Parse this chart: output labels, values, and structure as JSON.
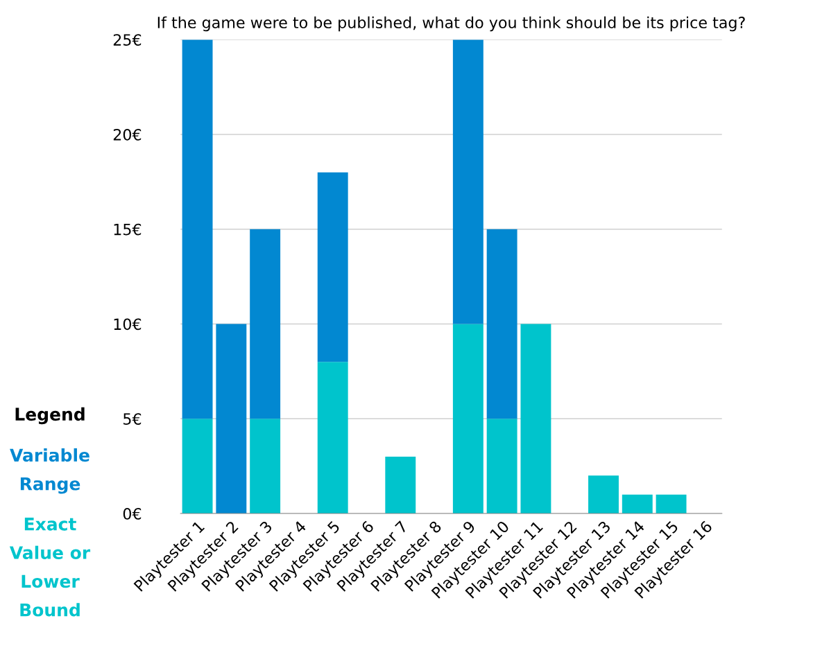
{
  "chart_data": {
    "type": "bar",
    "title": "If the game were to be published, what do you think should be its price tag?",
    "categories": [
      "Playtester 1",
      "Playtester 2",
      "Playtester 3",
      "Playtester 4",
      "Playtester 5",
      "Playtester 6",
      "Playtester 7",
      "Playtester 8",
      "Playtester 9",
      "Playtester 10",
      "Playtester 11",
      "Playtester 12",
      "Playtester 13",
      "Playtester 14",
      "Playtester 15",
      "Playtester 16"
    ],
    "stacked": true,
    "series": [
      {
        "name": "Exact Value or Lower Bound",
        "color": "#00c4cc",
        "values": [
          5,
          null,
          5,
          null,
          8,
          null,
          3,
          null,
          10,
          5,
          10,
          null,
          2,
          1,
          1,
          null
        ]
      },
      {
        "name": "Variable Range",
        "color": "#0288d1",
        "values": [
          20,
          10,
          10,
          null,
          10,
          null,
          null,
          null,
          15,
          10,
          null,
          null,
          null,
          null,
          null,
          null
        ]
      }
    ],
    "ylim": [
      0,
      25
    ],
    "yticks": [
      {
        "value": 0,
        "label": "0€"
      },
      {
        "value": 5,
        "label": "5€"
      },
      {
        "value": 10,
        "label": "10€"
      },
      {
        "value": 15,
        "label": "15€"
      },
      {
        "value": 20,
        "label": "20€"
      },
      {
        "value": 25,
        "label": "25€"
      }
    ],
    "grid": "y",
    "legend": "left",
    "legend_title": "Legend"
  }
}
